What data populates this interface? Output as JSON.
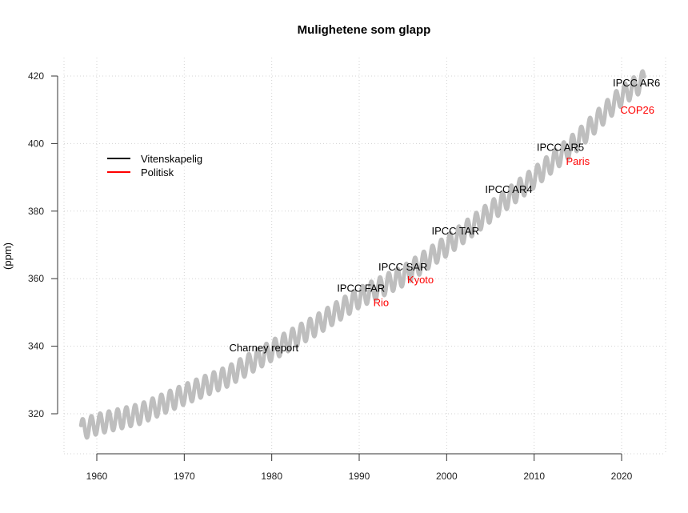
{
  "chart_data": {
    "type": "line",
    "title": "Mulighetene som glapp",
    "xlabel": "",
    "ylabel": "(ppm)",
    "xlim": [
      1958,
      2023
    ],
    "ylim": [
      310,
      423
    ],
    "grid": true,
    "x_ticks": [
      1960,
      1970,
      1980,
      1990,
      2000,
      2010,
      2020
    ],
    "y_ticks": [
      320,
      340,
      360,
      380,
      400,
      420
    ],
    "series": [
      {
        "color": "#bebebe",
        "x": [
          1958.2,
          1960,
          1965,
          1970,
          1975,
          1980,
          1985,
          1990,
          1995,
          2000,
          2005,
          2010,
          2015,
          2020,
          2022.6
        ],
        "y": [
          315.3,
          316.9,
          320.0,
          325.7,
          331.1,
          338.7,
          346.1,
          354.4,
          360.8,
          369.7,
          379.8,
          389.9,
          401.0,
          414.2,
          418.8
        ],
        "seasonal_amplitude_ppm": 3
      }
    ],
    "legend": {
      "position": "left",
      "entries": [
        {
          "label": "Vitenskapelig",
          "color": "#000000"
        },
        {
          "label": "Politisk",
          "color": "#ff0000"
        }
      ]
    },
    "annotations": [
      {
        "text": "Charney report",
        "x": 1979.1,
        "y": 339.7,
        "color": "#000000"
      },
      {
        "text": "IPCC FAR",
        "x": 1990.2,
        "y": 357.3,
        "color": "#000000"
      },
      {
        "text": "Rio",
        "x": 1992.5,
        "y": 356.4,
        "color": "#ff0000"
      },
      {
        "text": "IPCC SAR",
        "x": 1995.0,
        "y": 363.6,
        "color": "#000000"
      },
      {
        "text": "Kyoto",
        "x": 1997.0,
        "y": 359.8,
        "color": "#ff0000"
      },
      {
        "text": "IPCC TAR",
        "x": 2001.0,
        "y": 374.3,
        "color": "#000000"
      },
      {
        "text": "IPCC AR4",
        "x": 2007.1,
        "y": 386.6,
        "color": "#000000"
      },
      {
        "text": "IPCC AR5",
        "x": 2013.0,
        "y": 399.0,
        "color": "#000000"
      },
      {
        "text": "Paris",
        "x": 2015.0,
        "y": 396.8,
        "color": "#ff0000"
      },
      {
        "text": "IPCC AR6",
        "x": 2021.7,
        "y": 418.1,
        "color": "#000000"
      },
      {
        "text": "COP26",
        "x": 2021.8,
        "y": 410.0,
        "color": "#ff0000"
      }
    ]
  }
}
